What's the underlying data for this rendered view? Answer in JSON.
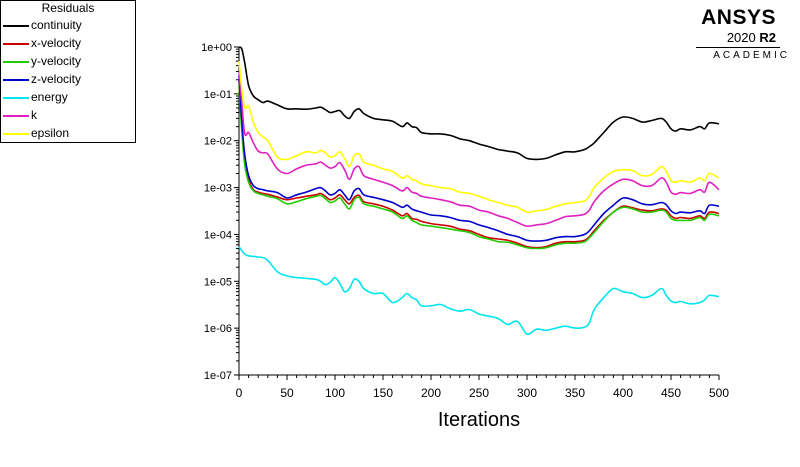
{
  "legend": {
    "title": "Residuals",
    "items": [
      {
        "label": "continuity",
        "color": "#000000"
      },
      {
        "label": "x-velocity",
        "color": "#cc0000"
      },
      {
        "label": "y-velocity",
        "color": "#22cc00"
      },
      {
        "label": "z-velocity",
        "color": "#0000c8"
      },
      {
        "label": "energy",
        "color": "#00e5ee"
      },
      {
        "label": "k",
        "color": "#e020c0"
      },
      {
        "label": "epsilon",
        "color": "#ffff00"
      }
    ]
  },
  "brand": {
    "name": "ANSYS",
    "version": "2020",
    "release": "R2",
    "edition": "ACADEMIC"
  },
  "chart_data": {
    "type": "line",
    "title": "",
    "xlabel": "Iterations",
    "ylabel": "",
    "xlim": [
      0,
      500
    ],
    "ylim": [
      1e-07,
      1
    ],
    "yscale": "log",
    "x_ticks": [
      "0",
      "50",
      "100",
      "150",
      "200",
      "250",
      "300",
      "350",
      "400",
      "450",
      "500"
    ],
    "y_ticks": [
      "1e+00",
      "1e-01",
      "1e-02",
      "1e-03",
      "1e-04",
      "1e-05",
      "1e-06",
      "1e-07"
    ],
    "grid": false,
    "legend_position": "top-left, outside",
    "series": [
      {
        "name": "continuity",
        "color": "#000000",
        "x": [
          0,
          3,
          6,
          10,
          15,
          20,
          25,
          30,
          40,
          50,
          60,
          70,
          80,
          85,
          90,
          95,
          100,
          105,
          110,
          115,
          120,
          125,
          130,
          140,
          150,
          160,
          170,
          175,
          180,
          185,
          190,
          200,
          210,
          220,
          230,
          240,
          250,
          260,
          270,
          280,
          290,
          300,
          310,
          320,
          330,
          340,
          350,
          360,
          365,
          370,
          380,
          390,
          400,
          410,
          420,
          430,
          440,
          445,
          450,
          455,
          460,
          470,
          480,
          485,
          490,
          500
        ],
        "y": [
          1.0,
          0.9,
          0.45,
          0.15,
          0.09,
          0.075,
          0.065,
          0.07,
          0.058,
          0.048,
          0.048,
          0.047,
          0.05,
          0.052,
          0.046,
          0.04,
          0.042,
          0.044,
          0.034,
          0.03,
          0.042,
          0.048,
          0.038,
          0.03,
          0.028,
          0.026,
          0.02,
          0.024,
          0.02,
          0.019,
          0.015,
          0.014,
          0.014,
          0.013,
          0.011,
          0.01,
          0.0085,
          0.0075,
          0.0065,
          0.006,
          0.0055,
          0.0042,
          0.004,
          0.0042,
          0.005,
          0.0058,
          0.0058,
          0.0065,
          0.0075,
          0.009,
          0.015,
          0.025,
          0.032,
          0.03,
          0.025,
          0.027,
          0.03,
          0.025,
          0.018,
          0.016,
          0.018,
          0.017,
          0.02,
          0.018,
          0.024,
          0.023
        ]
      },
      {
        "name": "x-velocity",
        "color": "#cc0000",
        "x": [
          0,
          3,
          6,
          10,
          15,
          20,
          25,
          30,
          40,
          50,
          60,
          70,
          80,
          85,
          90,
          95,
          100,
          105,
          110,
          115,
          120,
          125,
          130,
          140,
          150,
          160,
          170,
          175,
          180,
          185,
          190,
          200,
          210,
          220,
          230,
          240,
          250,
          260,
          270,
          280,
          290,
          300,
          310,
          320,
          330,
          340,
          350,
          360,
          365,
          370,
          380,
          390,
          400,
          410,
          420,
          430,
          440,
          445,
          450,
          455,
          460,
          470,
          480,
          485,
          490,
          500
        ],
        "y": [
          0.2,
          0.02,
          0.004,
          0.0015,
          0.0009,
          0.0008,
          0.00075,
          0.00072,
          0.00063,
          0.00055,
          0.0006,
          0.00065,
          0.0007,
          0.00075,
          0.00065,
          0.00055,
          0.0006,
          0.0007,
          0.00055,
          0.00045,
          0.00062,
          0.00068,
          0.0005,
          0.00045,
          0.0004,
          0.00033,
          0.00025,
          0.00028,
          0.00022,
          0.00021,
          0.00019,
          0.00017,
          0.00016,
          0.00015,
          0.00013,
          0.00012,
          0.0001,
          8.5e-05,
          8e-05,
          7.5e-05,
          6.5e-05,
          5.5e-05,
          5.2e-05,
          5.5e-05,
          6.5e-05,
          7e-05,
          7e-05,
          7.5e-05,
          9e-05,
          0.00012,
          0.0002,
          0.0003,
          0.0004,
          0.00037,
          0.00033,
          0.00032,
          0.00035,
          0.00033,
          0.00025,
          0.00022,
          0.00023,
          0.00022,
          0.00025,
          0.00022,
          0.0003,
          0.00028
        ]
      },
      {
        "name": "y-velocity",
        "color": "#22cc00",
        "x": [
          0,
          3,
          6,
          10,
          15,
          20,
          25,
          30,
          40,
          50,
          60,
          70,
          80,
          85,
          90,
          95,
          100,
          105,
          110,
          115,
          120,
          125,
          130,
          140,
          150,
          160,
          170,
          175,
          180,
          185,
          190,
          200,
          210,
          220,
          230,
          240,
          250,
          260,
          270,
          280,
          290,
          300,
          310,
          320,
          330,
          340,
          350,
          360,
          365,
          370,
          380,
          390,
          400,
          410,
          420,
          430,
          440,
          445,
          450,
          455,
          460,
          470,
          480,
          485,
          490,
          500
        ],
        "y": [
          0.15,
          0.015,
          0.003,
          0.0013,
          0.00085,
          0.00075,
          0.0007,
          0.00065,
          0.00058,
          0.00045,
          0.0005,
          0.00058,
          0.00065,
          0.00068,
          0.00058,
          0.00048,
          0.00052,
          0.0006,
          0.00045,
          0.00035,
          0.00055,
          0.00062,
          0.00045,
          0.0004,
          0.00035,
          0.0003,
          0.00022,
          0.00025,
          0.0002,
          0.00018,
          0.00016,
          0.00015,
          0.00014,
          0.00013,
          0.00012,
          0.00011,
          9e-05,
          8e-05,
          7e-05,
          6.8e-05,
          6e-05,
          5.2e-05,
          5e-05,
          5.2e-05,
          6e-05,
          6.5e-05,
          6.5e-05,
          7e-05,
          8.5e-05,
          0.00011,
          0.00019,
          0.0003,
          0.00038,
          0.00035,
          0.0003,
          0.0003,
          0.00033,
          0.0003,
          0.00022,
          0.0002,
          0.0002,
          0.0002,
          0.00023,
          0.0002,
          0.00027,
          0.00025
        ]
      },
      {
        "name": "z-velocity",
        "color": "#0000c8",
        "x": [
          0,
          3,
          6,
          10,
          15,
          20,
          25,
          30,
          40,
          50,
          60,
          70,
          80,
          85,
          90,
          95,
          100,
          105,
          110,
          115,
          120,
          125,
          130,
          140,
          150,
          160,
          170,
          175,
          180,
          185,
          190,
          200,
          210,
          220,
          230,
          240,
          250,
          260,
          270,
          280,
          290,
          300,
          310,
          320,
          330,
          340,
          350,
          360,
          365,
          370,
          380,
          390,
          400,
          410,
          420,
          430,
          440,
          445,
          450,
          455,
          460,
          470,
          480,
          485,
          490,
          500
        ],
        "y": [
          0.25,
          0.025,
          0.005,
          0.0018,
          0.0011,
          0.00095,
          0.0009,
          0.00085,
          0.00078,
          0.0006,
          0.0007,
          0.0008,
          0.00095,
          0.001,
          0.00085,
          0.0007,
          0.00075,
          0.0009,
          0.0007,
          0.00055,
          0.00085,
          0.00095,
          0.0007,
          0.00062,
          0.00055,
          0.00048,
          0.00038,
          0.00042,
          0.00035,
          0.00032,
          0.0003,
          0.00026,
          0.00025,
          0.00023,
          0.0002,
          0.00019,
          0.00016,
          0.00014,
          0.00012,
          0.0001,
          9e-05,
          7.5e-05,
          7.2e-05,
          7.5e-05,
          8.5e-05,
          9e-05,
          9e-05,
          0.0001,
          0.00012,
          0.00016,
          0.00028,
          0.00042,
          0.0006,
          0.00055,
          0.00045,
          0.00043,
          0.00048,
          0.00043,
          0.00032,
          0.00028,
          0.0003,
          0.00029,
          0.00032,
          0.00028,
          0.00042,
          0.0004
        ]
      },
      {
        "name": "energy",
        "color": "#00e5ee",
        "x": [
          0,
          3,
          6,
          10,
          15,
          20,
          25,
          30,
          40,
          50,
          60,
          70,
          80,
          85,
          90,
          95,
          100,
          105,
          110,
          115,
          120,
          125,
          130,
          140,
          150,
          160,
          170,
          175,
          180,
          185,
          190,
          200,
          210,
          220,
          230,
          240,
          250,
          260,
          270,
          280,
          290,
          300,
          310,
          320,
          330,
          340,
          350,
          360,
          365,
          370,
          380,
          390,
          400,
          410,
          420,
          430,
          440,
          445,
          450,
          455,
          460,
          470,
          480,
          485,
          490,
          500
        ],
        "y": [
          5.5e-05,
          4.5e-05,
          3.8e-05,
          3.5e-05,
          3.4e-05,
          3.3e-05,
          3.2e-05,
          2.8e-05,
          1.6e-05,
          1.3e-05,
          1.2e-05,
          1.15e-05,
          1.1e-05,
          1e-05,
          8.5e-06,
          9.5e-06,
          1.2e-05,
          9e-06,
          6e-06,
          7e-06,
          1.1e-05,
          1e-05,
          7e-06,
          5.5e-06,
          5.5e-06,
          3.5e-06,
          4.5e-06,
          5.5e-06,
          4.5e-06,
          4e-06,
          3e-06,
          3e-06,
          3.2e-06,
          2.6e-06,
          2.3e-06,
          2.5e-06,
          2e-06,
          1.8e-06,
          1.6e-06,
          1.2e-06,
          1.4e-06,
          7.5e-07,
          9.5e-07,
          9e-07,
          1e-06,
          1.1e-06,
          1e-06,
          1.05e-06,
          1.3e-06,
          2.5e-06,
          4.5e-06,
          7e-06,
          6e-06,
          5.5e-06,
          4.5e-06,
          5e-06,
          7e-06,
          5e-06,
          3.8e-06,
          3.5e-06,
          3.7e-06,
          3.3e-06,
          3.5e-06,
          4e-06,
          5e-06,
          4.7e-06
        ]
      },
      {
        "name": "k",
        "color": "#e020c0",
        "x": [
          0,
          3,
          6,
          10,
          15,
          20,
          25,
          30,
          40,
          50,
          60,
          70,
          80,
          85,
          90,
          95,
          100,
          105,
          110,
          115,
          120,
          125,
          130,
          140,
          150,
          160,
          170,
          175,
          180,
          185,
          190,
          200,
          210,
          220,
          230,
          240,
          250,
          260,
          270,
          280,
          290,
          300,
          310,
          320,
          330,
          340,
          350,
          360,
          365,
          370,
          380,
          390,
          400,
          410,
          420,
          430,
          440,
          445,
          450,
          455,
          460,
          470,
          480,
          485,
          490,
          500
        ],
        "y": [
          0.3,
          0.06,
          0.014,
          0.015,
          0.009,
          0.006,
          0.0055,
          0.0052,
          0.0025,
          0.002,
          0.0025,
          0.003,
          0.0032,
          0.0035,
          0.003,
          0.0026,
          0.0028,
          0.0034,
          0.0024,
          0.0015,
          0.0025,
          0.0028,
          0.0018,
          0.0015,
          0.0013,
          0.0011,
          0.00085,
          0.001,
          0.0008,
          0.00075,
          0.00065,
          0.0006,
          0.00055,
          0.0005,
          0.00042,
          0.0004,
          0.00033,
          0.0003,
          0.00025,
          0.00022,
          0.00018,
          0.00015,
          0.00016,
          0.00017,
          0.0002,
          0.00024,
          0.00025,
          0.00027,
          0.00033,
          0.0005,
          0.00085,
          0.0012,
          0.0015,
          0.0014,
          0.0011,
          0.0011,
          0.0016,
          0.0013,
          0.0008,
          0.00072,
          0.00078,
          0.00075,
          0.0009,
          0.0008,
          0.0013,
          0.0009
        ]
      },
      {
        "name": "epsilon",
        "color": "#ffff00",
        "x": [
          0,
          3,
          6,
          10,
          15,
          20,
          25,
          30,
          40,
          50,
          60,
          70,
          80,
          85,
          90,
          95,
          100,
          105,
          110,
          115,
          120,
          125,
          130,
          140,
          150,
          160,
          170,
          175,
          180,
          185,
          190,
          200,
          210,
          220,
          230,
          240,
          250,
          260,
          270,
          280,
          290,
          300,
          310,
          320,
          330,
          340,
          350,
          360,
          365,
          370,
          380,
          390,
          400,
          410,
          420,
          430,
          440,
          445,
          450,
          455,
          460,
          470,
          480,
          485,
          490,
          500
        ],
        "y": [
          0.5,
          0.12,
          0.05,
          0.055,
          0.025,
          0.015,
          0.012,
          0.01,
          0.0045,
          0.004,
          0.0048,
          0.0058,
          0.0055,
          0.0062,
          0.0055,
          0.0045,
          0.0048,
          0.0058,
          0.0042,
          0.0028,
          0.0048,
          0.0052,
          0.0035,
          0.003,
          0.0025,
          0.0022,
          0.0016,
          0.0018,
          0.0015,
          0.0014,
          0.0012,
          0.0011,
          0.001,
          0.00095,
          0.0008,
          0.00075,
          0.00065,
          0.00055,
          0.00048,
          0.00042,
          0.00038,
          0.0003,
          0.00032,
          0.00034,
          0.0004,
          0.00045,
          0.00048,
          0.00052,
          0.00065,
          0.001,
          0.0016,
          0.0022,
          0.0024,
          0.0023,
          0.0018,
          0.0019,
          0.0028,
          0.0022,
          0.0014,
          0.0013,
          0.0014,
          0.0013,
          0.0016,
          0.0014,
          0.002,
          0.0016
        ]
      }
    ]
  }
}
